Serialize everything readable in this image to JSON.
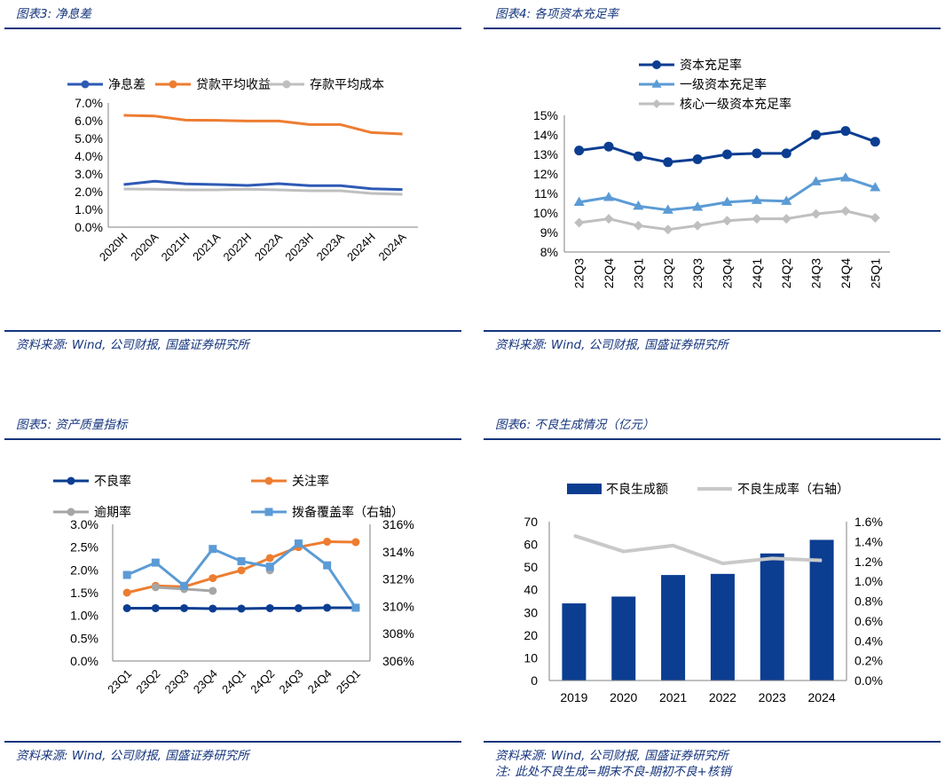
{
  "panels": [
    {
      "title": "图表3:  净息差",
      "source": "资料来源:  Wind,  公司财报,  国盛证券研究所",
      "chart_data": {
        "type": "line",
        "title": "",
        "categories": [
          "2020H",
          "2020A",
          "2021H",
          "2021A",
          "2022H",
          "2022A",
          "2023H",
          "2023A",
          "2024H",
          "2024A"
        ],
        "series": [
          {
            "name": "净息差",
            "color": "#2e5ab5",
            "values": [
              2.4,
              2.59,
              2.44,
              2.4,
              2.35,
              2.45,
              2.34,
              2.34,
              2.16,
              2.12
            ]
          },
          {
            "name": "贷款平均收益",
            "color": "#ed7d31",
            "values": [
              6.3,
              6.26,
              6.03,
              6.02,
              5.98,
              5.98,
              5.78,
              5.78,
              5.33,
              5.25
            ]
          },
          {
            "name": "存款平均成本",
            "color": "#bfbfbf",
            "values": [
              2.15,
              2.14,
              2.1,
              2.1,
              2.14,
              2.1,
              2.05,
              2.05,
              1.9,
              1.85
            ]
          }
        ],
        "ylim": [
          0,
          7
        ],
        "yticks": [
          "0.0%",
          "1.0%",
          "2.0%",
          "3.0%",
          "4.0%",
          "5.0%",
          "6.0%",
          "7.0%"
        ],
        "xlabel": "",
        "ylabel": ""
      }
    },
    {
      "title": "图表4:  各项资本充足率",
      "source": "资料来源:  Wind,  公司财报,  国盛证券研究所",
      "chart_data": {
        "type": "line",
        "title": "",
        "categories": [
          "22Q3",
          "22Q4",
          "23Q1",
          "23Q2",
          "23Q3",
          "23Q4",
          "24Q1",
          "24Q2",
          "24Q3",
          "24Q4",
          "25Q1"
        ],
        "series": [
          {
            "name": "资本充足率",
            "color": "#0b3d91",
            "marker": "circle",
            "values": [
              13.2,
              13.4,
              12.9,
              12.6,
              12.75,
              13.0,
              13.05,
              13.05,
              14.0,
              14.2,
              13.65
            ]
          },
          {
            "name": "一级资本充足率",
            "color": "#5b9bd5",
            "marker": "triangle",
            "values": [
              10.55,
              10.8,
              10.35,
              10.15,
              10.3,
              10.55,
              10.65,
              10.6,
              11.6,
              11.8,
              11.3
            ]
          },
          {
            "name": "核心一级资本充足率",
            "color": "#bfbfbf",
            "marker": "diamond",
            "values": [
              9.5,
              9.7,
              9.35,
              9.15,
              9.35,
              9.6,
              9.7,
              9.7,
              9.95,
              10.1,
              9.75
            ]
          }
        ],
        "ylim": [
          8,
          15
        ],
        "yticks": [
          "8%",
          "9%",
          "10%",
          "11%",
          "12%",
          "13%",
          "14%",
          "15%"
        ],
        "xlabel": "",
        "ylabel": ""
      }
    },
    {
      "title": "图表5:  资产质量指标",
      "source": "资料来源:  Wind,  公司财报,  国盛证券研究所",
      "chart_data": {
        "type": "line",
        "title": "",
        "categories": [
          "23Q1",
          "23Q2",
          "23Q3",
          "23Q4",
          "24Q1",
          "24Q2",
          "24Q3",
          "24Q4",
          "25Q1"
        ],
        "series": [
          {
            "name": "不良率",
            "color": "#0b3d91",
            "marker": "circle",
            "axis": "left",
            "values": [
              1.16,
              1.16,
              1.16,
              1.15,
              1.15,
              1.16,
              1.16,
              1.17,
              1.17
            ]
          },
          {
            "name": "关注率",
            "color": "#ed7d31",
            "marker": "circle",
            "axis": "left",
            "values": [
              1.5,
              1.65,
              1.63,
              1.82,
              1.99,
              2.26,
              2.5,
              2.62,
              2.61
            ]
          },
          {
            "name": "逾期率",
            "color": "#a6a6a6",
            "marker": "circle",
            "axis": "left",
            "values": [
              null,
              1.62,
              1.58,
              1.54,
              null,
              1.99,
              null,
              null,
              null
            ]
          },
          {
            "name": "拨备覆盖率（右轴）",
            "color": "#5b9bd5",
            "marker": "square",
            "axis": "right",
            "values": [
              312.3,
              313.2,
              311.5,
              314.2,
              313.3,
              312.9,
              314.6,
              313.0,
              309.9
            ]
          }
        ],
        "ylim": [
          0,
          3.0
        ],
        "yticks": [
          "0.0%",
          "0.5%",
          "1.0%",
          "1.5%",
          "2.0%",
          "2.5%",
          "3.0%"
        ],
        "y2lim": [
          306,
          316
        ],
        "y2ticks": [
          "306%",
          "308%",
          "310%",
          "312%",
          "314%",
          "316%"
        ],
        "xlabel": "",
        "ylabel": ""
      }
    },
    {
      "title": "图表6:  不良生成情况（亿元）",
      "source": "资料来源:  Wind,  公司财报,  国盛证券研究所",
      "note": "注:  此处不良生成=期末不良-期初不良+核销",
      "chart_data": {
        "type": "bar",
        "title": "",
        "categories": [
          "2019",
          "2020",
          "2021",
          "2022",
          "2023",
          "2024"
        ],
        "series": [
          {
            "name": "不良生成额",
            "type": "bar",
            "color": "#0b3d91",
            "axis": "left",
            "values": [
              34,
              37,
              46.5,
              47,
              56,
              62
            ]
          },
          {
            "name": "不良生成率（右轴）",
            "type": "line",
            "color": "#c9c9c9",
            "axis": "right",
            "values": [
              1.46,
              1.3,
              1.36,
              1.18,
              1.23,
              1.21
            ]
          }
        ],
        "ylim": [
          0,
          70
        ],
        "yticks": [
          "0",
          "10",
          "20",
          "30",
          "40",
          "50",
          "60",
          "70"
        ],
        "y2lim": [
          0,
          1.6
        ],
        "y2ticks": [
          "0.0%",
          "0.2%",
          "0.4%",
          "0.6%",
          "0.8%",
          "1.0%",
          "1.2%",
          "1.4%",
          "1.6%"
        ],
        "xlabel": "",
        "ylabel": ""
      }
    }
  ]
}
